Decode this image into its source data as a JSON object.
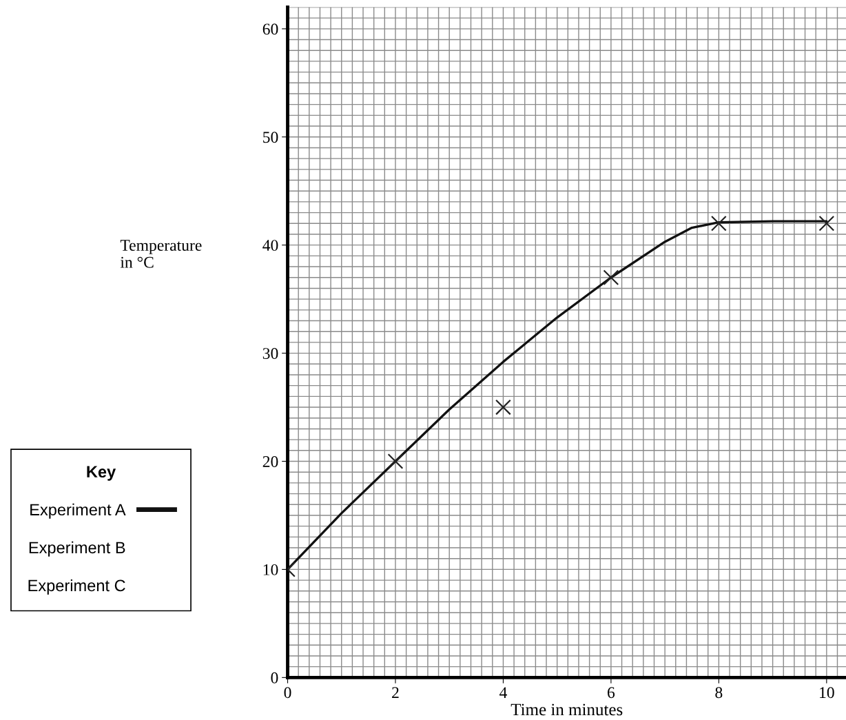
{
  "chart_data": {
    "type": "line",
    "xlabel": "Time in minutes",
    "ylabel": "Temperature\nin °C",
    "legend_title": "Key",
    "xlim": [
      0,
      10.36
    ],
    "ylim": [
      0,
      62
    ],
    "xticks": [
      0,
      2,
      4,
      6,
      8,
      10
    ],
    "yticks": [
      0,
      10,
      20,
      30,
      40,
      50,
      60
    ],
    "grid": true,
    "legend": "left",
    "series": [
      {
        "type": "scatter",
        "marker": "cross",
        "color": "#222222",
        "x": [
          0,
          2,
          4,
          6,
          8,
          10
        ],
        "values": [
          10,
          20,
          25,
          37,
          42,
          42
        ]
      },
      {
        "name": "Experiment A",
        "color": "#111111",
        "marker": "none",
        "x": [
          0,
          1,
          2,
          3,
          4,
          5,
          6,
          7,
          7.5,
          8,
          9,
          10
        ],
        "values": [
          10,
          15.2,
          20,
          24.8,
          29.2,
          33.3,
          37,
          40.3,
          41.6,
          42.1,
          42.2,
          42.2
        ]
      },
      {
        "type": "line",
        "name": "Experiment B"
      },
      {
        "type": "line",
        "name": "Experiment C"
      }
    ]
  }
}
